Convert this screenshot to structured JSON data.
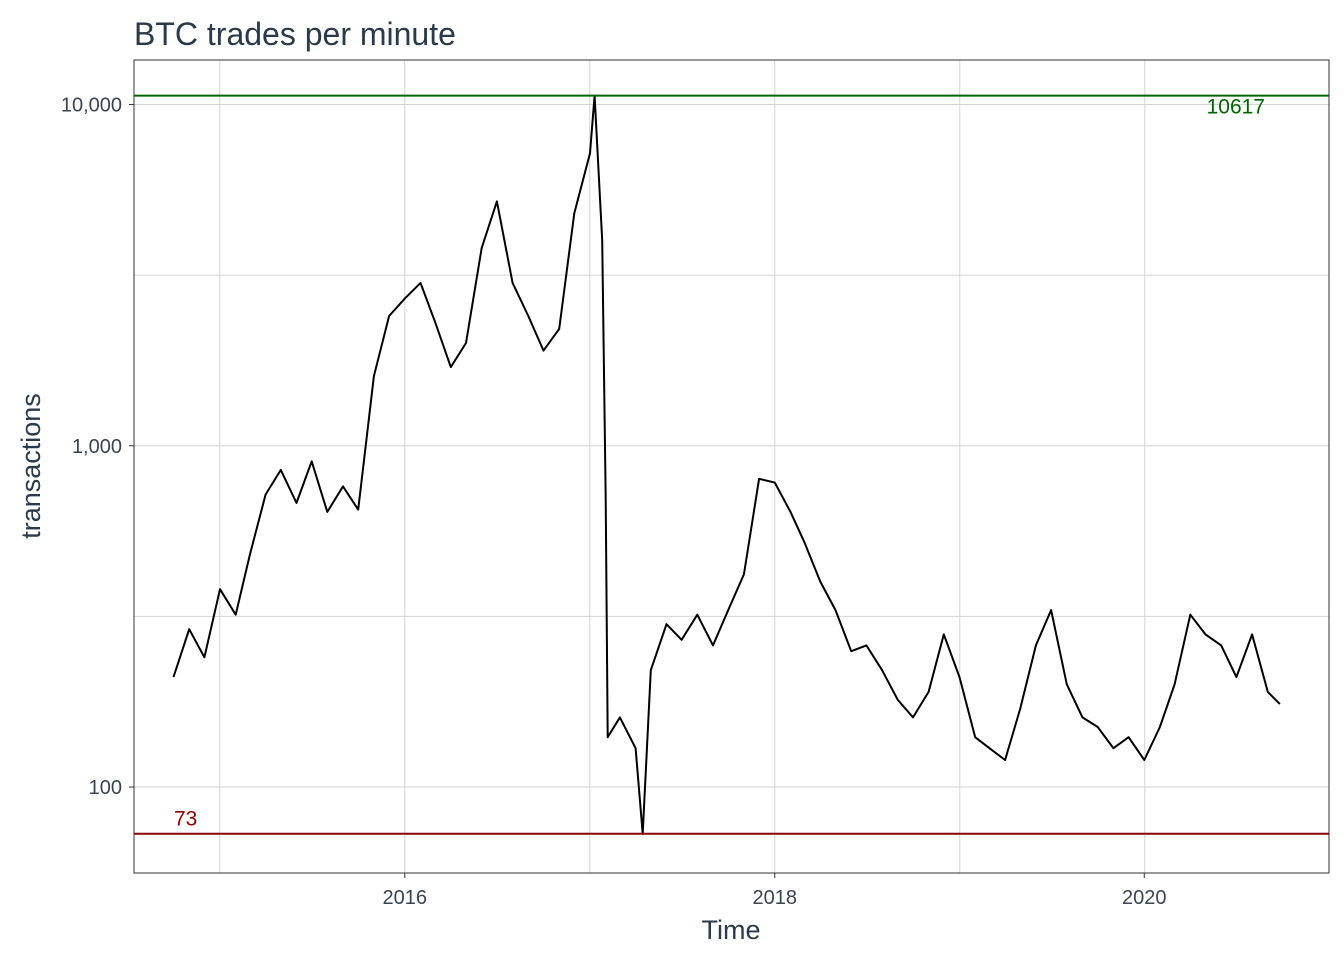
{
  "chart_data": {
    "type": "line",
    "title": "BTC trades per minute",
    "xlabel": "Time",
    "ylabel": "transactions",
    "y_scale": "log",
    "xlim": [
      "2014-07-15",
      "2020-12-31"
    ],
    "ylim": [
      56,
      13500
    ],
    "grid": true,
    "legend": "none",
    "x_ticks": [
      {
        "value": "2016-01-01",
        "label": "2016"
      },
      {
        "value": "2018-01-01",
        "label": "2018"
      },
      {
        "value": "2020-01-01",
        "label": "2020"
      }
    ],
    "y_ticks": [
      {
        "value": 100,
        "label": "100"
      },
      {
        "value": 1000,
        "label": "1,000"
      },
      {
        "value": 10000,
        "label": "10,000"
      }
    ],
    "reference_lines": [
      {
        "value": 10617,
        "label": "10617",
        "color": "#006400",
        "label_position": "right"
      },
      {
        "value": 73,
        "label": "73",
        "color": "#8b0000",
        "label_position": "left"
      }
    ],
    "series": [
      {
        "color": "#000000",
        "points": [
          [
            "2014-10-01",
            210
          ],
          [
            "2014-11-01",
            290
          ],
          [
            "2014-12-01",
            240
          ],
          [
            "2015-01-01",
            380
          ],
          [
            "2015-02-01",
            320
          ],
          [
            "2015-03-01",
            480
          ],
          [
            "2015-04-01",
            720
          ],
          [
            "2015-05-01",
            850
          ],
          [
            "2015-06-01",
            680
          ],
          [
            "2015-07-01",
            900
          ],
          [
            "2015-08-01",
            640
          ],
          [
            "2015-09-01",
            760
          ],
          [
            "2015-10-01",
            650
          ],
          [
            "2015-11-01",
            1600
          ],
          [
            "2015-12-01",
            2400
          ],
          [
            "2016-01-01",
            2700
          ],
          [
            "2016-02-01",
            3000
          ],
          [
            "2016-03-01",
            2300
          ],
          [
            "2016-04-01",
            1700
          ],
          [
            "2016-05-01",
            2000
          ],
          [
            "2016-06-01",
            3800
          ],
          [
            "2016-07-01",
            5200
          ],
          [
            "2016-08-01",
            3000
          ],
          [
            "2016-09-01",
            2400
          ],
          [
            "2016-10-01",
            1900
          ],
          [
            "2016-11-01",
            2200
          ],
          [
            "2016-12-01",
            4800
          ],
          [
            "2017-01-01",
            7200
          ],
          [
            "2017-01-10",
            10617
          ],
          [
            "2017-01-25",
            4000
          ],
          [
            "2017-02-01",
            700
          ],
          [
            "2017-02-05",
            140
          ],
          [
            "2017-03-01",
            160
          ],
          [
            "2017-04-01",
            130
          ],
          [
            "2017-04-15",
            73
          ],
          [
            "2017-05-01",
            220
          ],
          [
            "2017-06-01",
            300
          ],
          [
            "2017-07-01",
            270
          ],
          [
            "2017-08-01",
            320
          ],
          [
            "2017-09-01",
            260
          ],
          [
            "2017-10-01",
            330
          ],
          [
            "2017-11-01",
            420
          ],
          [
            "2017-12-01",
            800
          ],
          [
            "2018-01-01",
            780
          ],
          [
            "2018-02-01",
            640
          ],
          [
            "2018-03-01",
            520
          ],
          [
            "2018-04-01",
            400
          ],
          [
            "2018-05-01",
            330
          ],
          [
            "2018-06-01",
            250
          ],
          [
            "2018-07-01",
            260
          ],
          [
            "2018-08-01",
            220
          ],
          [
            "2018-09-01",
            180
          ],
          [
            "2018-10-01",
            160
          ],
          [
            "2018-11-01",
            190
          ],
          [
            "2018-12-01",
            280
          ],
          [
            "2019-01-01",
            210
          ],
          [
            "2019-02-01",
            140
          ],
          [
            "2019-03-01",
            130
          ],
          [
            "2019-04-01",
            120
          ],
          [
            "2019-05-01",
            170
          ],
          [
            "2019-06-01",
            260
          ],
          [
            "2019-07-01",
            330
          ],
          [
            "2019-08-01",
            200
          ],
          [
            "2019-09-01",
            160
          ],
          [
            "2019-10-01",
            150
          ],
          [
            "2019-11-01",
            130
          ],
          [
            "2019-12-01",
            140
          ],
          [
            "2020-01-01",
            120
          ],
          [
            "2020-02-01",
            150
          ],
          [
            "2020-03-01",
            200
          ],
          [
            "2020-04-01",
            320
          ],
          [
            "2020-05-01",
            280
          ],
          [
            "2020-06-01",
            260
          ],
          [
            "2020-07-01",
            210
          ],
          [
            "2020-08-01",
            280
          ],
          [
            "2020-09-01",
            190
          ],
          [
            "2020-09-25",
            175
          ]
        ]
      }
    ]
  }
}
